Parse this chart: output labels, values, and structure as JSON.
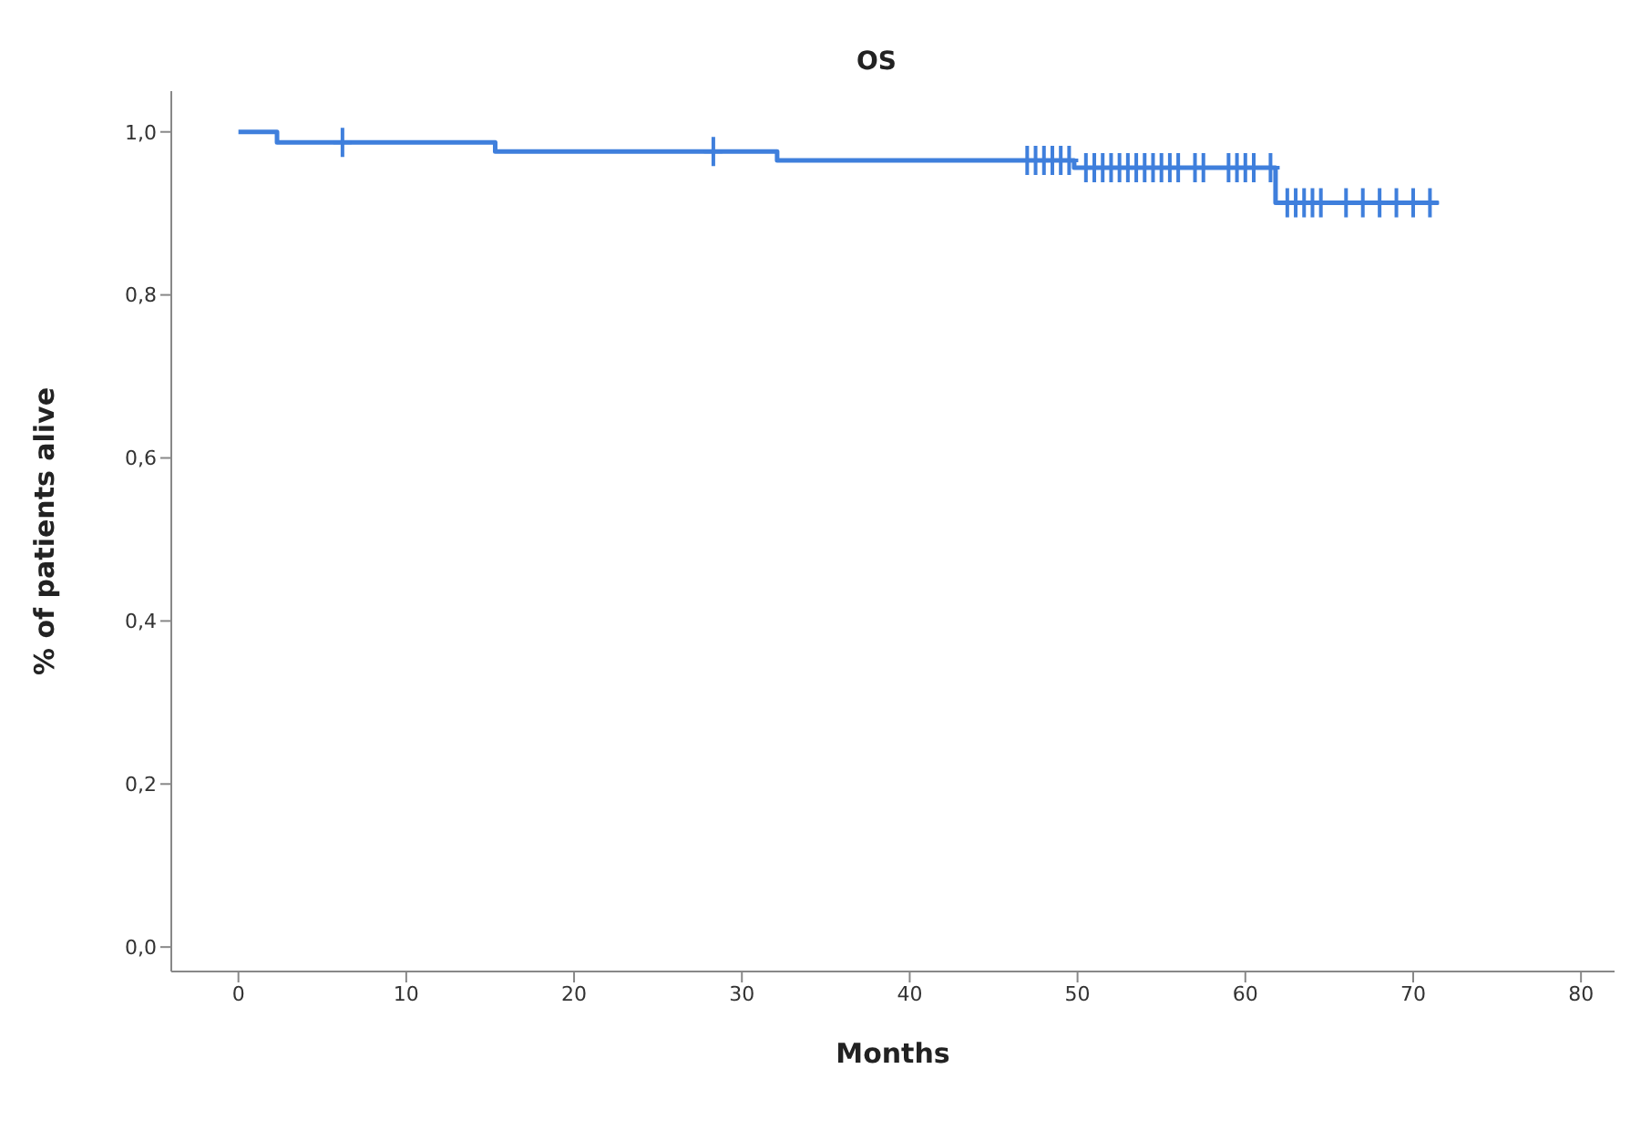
{
  "chart_data": {
    "type": "step",
    "title": "OS",
    "xlabel": "Months",
    "ylabel": "% of patients alive",
    "xlim": [
      -4,
      82
    ],
    "xticks": [
      0,
      10,
      20,
      30,
      40,
      50,
      60,
      70,
      80
    ],
    "ylim": [
      -0.03,
      1.05
    ],
    "yticks": [
      {
        "value": 0,
        "label": "0,0"
      },
      {
        "value": 0.2,
        "label": "0,2"
      },
      {
        "value": 0.4,
        "label": "0,4"
      },
      {
        "value": 0.6,
        "label": "0,6"
      },
      {
        "value": 0.8,
        "label": "0,8"
      },
      {
        "value": 1,
        "label": "1,0"
      }
    ],
    "grid": false,
    "line_style": "solid",
    "series": [
      {
        "color": "#3f7fdc",
        "marker": "none",
        "x": [
          0,
          2.3,
          15.3,
          32.1,
          49.8,
          61.8,
          71.5
        ],
        "values": [
          1,
          0.987,
          0.976,
          0.965,
          0.956,
          0.913,
          0.913
        ]
      },
      {
        "type": "scatter",
        "color": "#3f7fdc",
        "marker": "cross",
        "x": [
          6.2,
          28.3,
          47,
          47.5,
          48,
          48.5,
          49,
          49.5,
          50.5,
          51,
          51.5,
          52,
          52.5,
          53,
          53.5,
          54,
          54.5,
          55,
          55.5,
          56,
          57,
          57.5,
          59,
          59.5,
          60,
          60.5,
          61.5,
          62.5,
          63,
          63.5,
          64,
          64.5,
          66,
          67,
          68,
          69,
          70,
          71
        ],
        "values": [
          0.987,
          0.976,
          0.965,
          0.965,
          0.965,
          0.965,
          0.965,
          0.965,
          0.956,
          0.956,
          0.956,
          0.956,
          0.956,
          0.956,
          0.956,
          0.956,
          0.956,
          0.956,
          0.956,
          0.956,
          0.956,
          0.956,
          0.956,
          0.956,
          0.956,
          0.956,
          0.956,
          0.913,
          0.913,
          0.913,
          0.913,
          0.913,
          0.913,
          0.913,
          0.913,
          0.913,
          0.913,
          0.913
        ]
      }
    ]
  }
}
